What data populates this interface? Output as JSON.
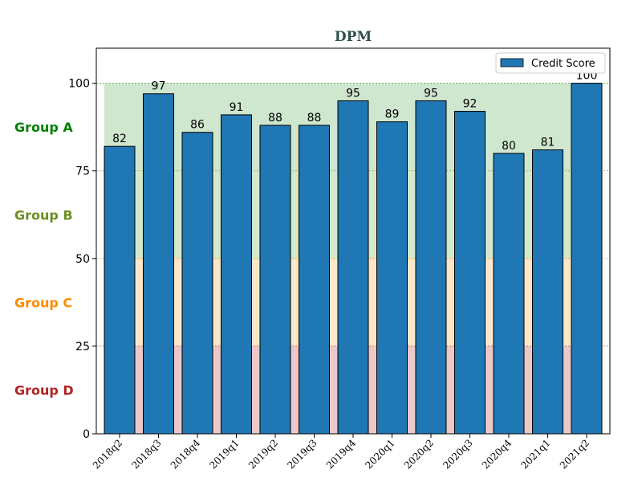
{
  "chart_data": {
    "type": "bar",
    "title": "DPM",
    "xlabel": "",
    "ylabel": "",
    "categories": [
      "2018q2",
      "2018q3",
      "2018q4",
      "2019q1",
      "2019q2",
      "2019q3",
      "2019q4",
      "2020q1",
      "2020q2",
      "2020q3",
      "2020q4",
      "2021q1",
      "2021q2"
    ],
    "series": [
      {
        "name": "Credit Score",
        "values": [
          82,
          97,
          86,
          91,
          88,
          88,
          95,
          89,
          95,
          92,
          80,
          81,
          100
        ],
        "color": "#1f77b4"
      }
    ],
    "ylim": [
      0,
      110
    ],
    "yticks": [
      0,
      25,
      50,
      75,
      100
    ],
    "legend_position": "top-right",
    "grid": false,
    "bands": [
      {
        "label": "Group A",
        "from": 75,
        "to": 100,
        "color": "#008000",
        "fill": "#cfe6cf"
      },
      {
        "label": "Group B",
        "from": 50,
        "to": 75,
        "color": "#6b8e23",
        "fill": "#d4e8cc"
      },
      {
        "label": "Group C",
        "from": 25,
        "to": 50,
        "color": "#ff8c00",
        "fill": "#fde7c9"
      },
      {
        "label": "Group D",
        "from": 0,
        "to": 25,
        "color": "#b22222",
        "fill": "#ecc8c8"
      }
    ]
  }
}
